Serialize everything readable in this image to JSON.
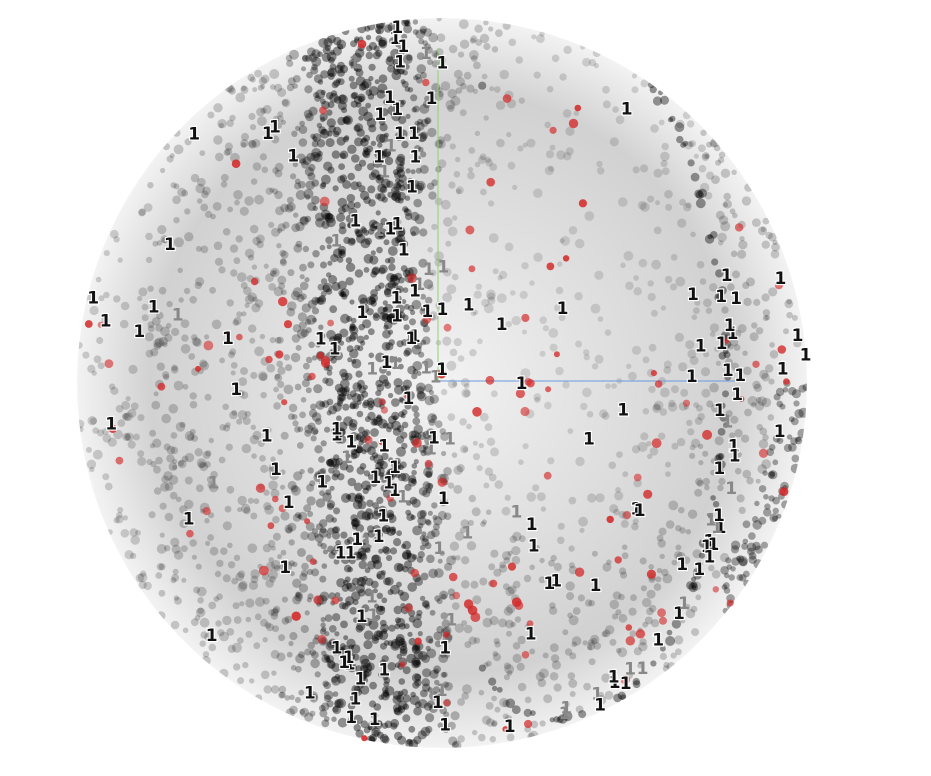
{
  "viewer": {
    "point_label": "1",
    "colors": {
      "background": "#ffffff",
      "cloud_points": "#000000",
      "highlight_points": "#d42a2a",
      "axis_x": "#6a9ae0",
      "axis_y": "#8fd07a"
    }
  }
}
